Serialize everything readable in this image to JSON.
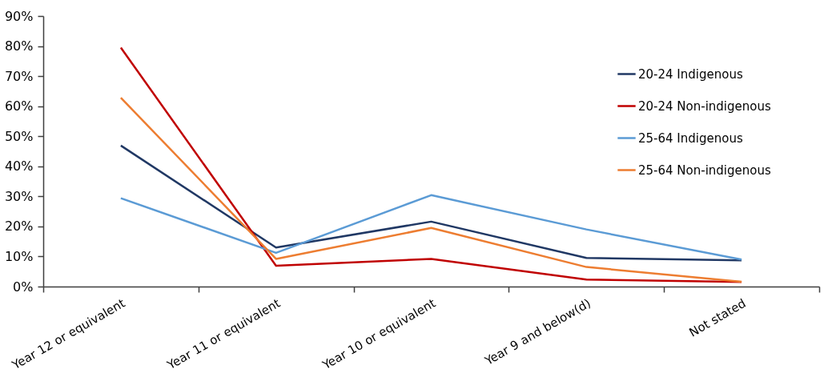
{
  "chart_data": {
    "type": "line",
    "categories": [
      "Year 12 or equivalent",
      "Year 11 or equivalent",
      "Year 10 or equivalent",
      "Year 9 and below(d)",
      "Not stated"
    ],
    "series": [
      {
        "name": "20-24 Indigenous",
        "color": "#203864",
        "values": [
          46.9,
          13.0,
          21.6,
          9.5,
          8.7
        ]
      },
      {
        "name": "20-24 Non-indigenous",
        "color": "#c00000",
        "values": [
          79.5,
          6.9,
          9.2,
          2.3,
          1.5
        ]
      },
      {
        "name": "25-64 Indigenous",
        "color": "#5b9bd5",
        "values": [
          29.4,
          11.2,
          30.4,
          19.0,
          9.0
        ]
      },
      {
        "name": "25-64 Non-indigenous",
        "color": "#ed7d31",
        "values": [
          62.8,
          9.2,
          19.5,
          6.5,
          1.6
        ]
      }
    ],
    "ylim": [
      0,
      90
    ],
    "yticks": [
      {
        "value": 0,
        "label": "0%"
      },
      {
        "value": 10,
        "label": "10%"
      },
      {
        "value": 20,
        "label": "20%"
      },
      {
        "value": 30,
        "label": "30%"
      },
      {
        "value": 40,
        "label": "40%"
      },
      {
        "value": 50,
        "label": "50%"
      },
      {
        "value": 60,
        "label": "60%"
      },
      {
        "value": 70,
        "label": "70%"
      },
      {
        "value": 80,
        "label": "80%"
      },
      {
        "value": 90,
        "label": "90%"
      }
    ],
    "grid": false,
    "legend": "top right",
    "line_style": "solid"
  }
}
